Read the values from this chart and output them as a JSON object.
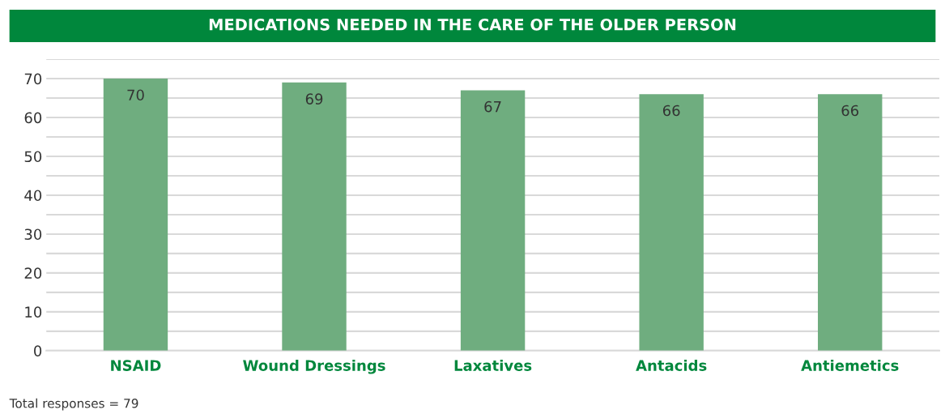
{
  "chart_data": {
    "type": "bar",
    "title": "MEDICATIONS NEEDED IN THE CARE OF THE OLDER PERSON",
    "categories": [
      "NSAID",
      "Wound Dressings",
      "Laxatives",
      "Antacids",
      "Antiemetics"
    ],
    "values": [
      70,
      69,
      67,
      66,
      66
    ],
    "color": "#6fad7f",
    "data_labels": true,
    "ylim": [
      0,
      75
    ],
    "yticks": [
      0,
      {
        "value": 5,
        "label": null
      },
      10,
      {
        "value": 15,
        "label": null
      },
      20,
      {
        "value": 25,
        "label": null
      },
      30,
      {
        "value": 35,
        "label": null
      },
      40,
      {
        "value": 45,
        "label": null
      },
      50,
      {
        "value": 55,
        "label": null
      },
      60,
      {
        "value": 65,
        "label": null
      },
      70,
      {
        "value": 75,
        "label": null
      }
    ],
    "grid": "y",
    "annotations": [
      "Total responses = 79"
    ]
  }
}
